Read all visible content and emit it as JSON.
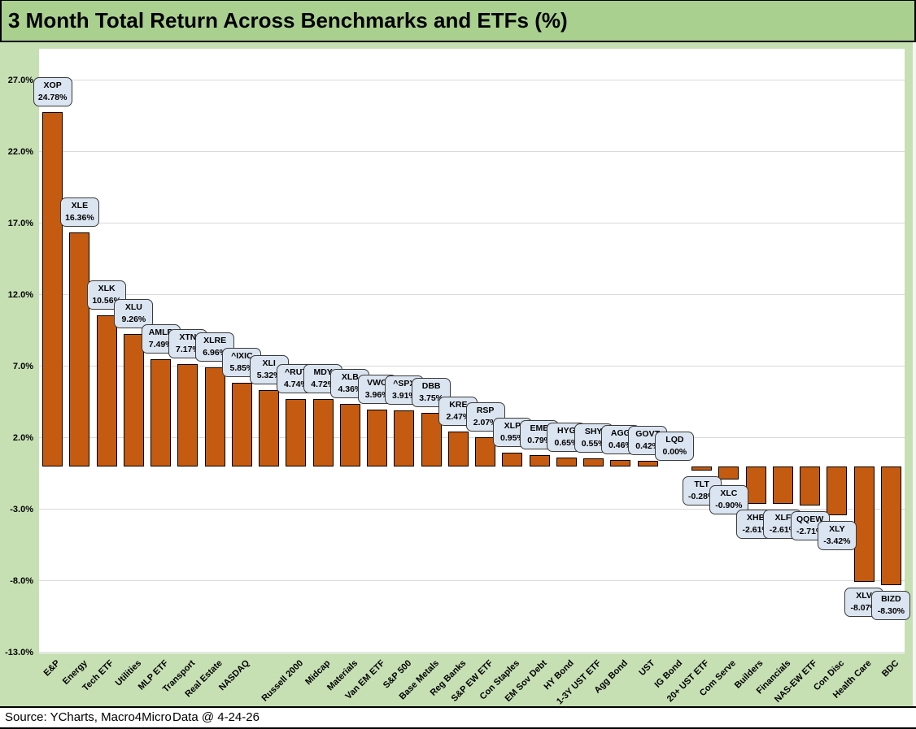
{
  "title": "3 Month Total Return Across Benchmarks and ETFs (%)",
  "footer": {
    "source": "Source: YCharts, Macro4Micro",
    "data_date": "Data @ 4-24-26"
  },
  "chart_data": {
    "type": "bar",
    "title": "3 Month Total Return Across Benchmarks and ETFs (%)",
    "xlabel": "",
    "ylabel": "",
    "ylim": [
      -13,
      27
    ],
    "grid": true,
    "legend": "none",
    "yticks": [
      {
        "value": 27,
        "label": "27.0%"
      },
      {
        "value": 22,
        "label": "22.0%"
      },
      {
        "value": 17,
        "label": "17.0%"
      },
      {
        "value": 12,
        "label": "12.0%"
      },
      {
        "value": 7,
        "label": "7.0%"
      },
      {
        "value": 2,
        "label": "2.0%"
      },
      {
        "value": -3,
        "label": "-3.0%"
      },
      {
        "value": -8,
        "label": "-8.0%"
      },
      {
        "value": -13,
        "label": "-13.0%"
      }
    ],
    "points": [
      {
        "ticker": "XOP",
        "category": "E&P",
        "value": 24.78,
        "label": "24.78%"
      },
      {
        "ticker": "XLE",
        "category": "Energy",
        "value": 16.36,
        "label": "16.36%"
      },
      {
        "ticker": "XLK",
        "category": "Tech ETF",
        "value": 10.56,
        "label": "10.56%"
      },
      {
        "ticker": "XLU",
        "category": "Utilities",
        "value": 9.26,
        "label": "9.26%"
      },
      {
        "ticker": "AMLP",
        "category": "MLP ETF",
        "value": 7.49,
        "label": "7.49%"
      },
      {
        "ticker": "XTN",
        "category": "Transport",
        "value": 7.17,
        "label": "7.17%"
      },
      {
        "ticker": "XLRE",
        "category": "Real Estate",
        "value": 6.96,
        "label": "6.96%"
      },
      {
        "ticker": "^IXIC",
        "category": "NASDAQ",
        "value": 5.85,
        "label": "5.85%"
      },
      {
        "ticker": "XLI",
        "category": "",
        "value": 5.32,
        "label": "5.32%"
      },
      {
        "ticker": "^RUT",
        "category": "Russell 2000",
        "value": 4.74,
        "label": "4.74%"
      },
      {
        "ticker": "MDY",
        "category": "Midcap",
        "value": 4.72,
        "label": "4.72%"
      },
      {
        "ticker": "XLB",
        "category": "Materials",
        "value": 4.36,
        "label": "4.36%"
      },
      {
        "ticker": "VWO",
        "category": "Van EM ETF",
        "value": 3.96,
        "label": "3.96%"
      },
      {
        "ticker": "^SPX",
        "category": "S&P 500",
        "value": 3.91,
        "label": "3.91%"
      },
      {
        "ticker": "DBB",
        "category": "Base Metals",
        "value": 3.75,
        "label": "3.75%"
      },
      {
        "ticker": "KRE",
        "category": "Reg Banks",
        "value": 2.47,
        "label": "2.47%"
      },
      {
        "ticker": "RSP",
        "category": "S&P EW ETF",
        "value": 2.07,
        "label": "2.07%"
      },
      {
        "ticker": "XLP",
        "category": "Con Staples",
        "value": 0.95,
        "label": "0.95%"
      },
      {
        "ticker": "EMB",
        "category": "EM Sov Debt",
        "value": 0.79,
        "label": "0.79%"
      },
      {
        "ticker": "HYG",
        "category": "HY Bond",
        "value": 0.65,
        "label": "0.65%"
      },
      {
        "ticker": "SHY",
        "category": "1-3Y UST ETF",
        "value": 0.55,
        "label": "0.55%"
      },
      {
        "ticker": "AGG",
        "category": "Agg Bond",
        "value": 0.46,
        "label": "0.46%"
      },
      {
        "ticker": "GOVT",
        "category": "UST",
        "value": 0.42,
        "label": "0.42%"
      },
      {
        "ticker": "LQD",
        "category": "IG Bond",
        "value": 0.0,
        "label": "0.00%"
      },
      {
        "ticker": "TLT",
        "category": "20+ UST ETF",
        "value": -0.28,
        "label": "-0.28%"
      },
      {
        "ticker": "XLC",
        "category": "Com Serve",
        "value": -0.9,
        "label": "-0.90%"
      },
      {
        "ticker": "XHB",
        "category": "Builders",
        "value": -2.61,
        "label": "-2.61%"
      },
      {
        "ticker": "XLF",
        "category": "Financials",
        "value": -2.61,
        "label": "-2.61%"
      },
      {
        "ticker": "QQEW",
        "category": "NAS-EW ETF",
        "value": -2.71,
        "label": "-2.71%"
      },
      {
        "ticker": "XLY",
        "category": "Con Disc",
        "value": -3.42,
        "label": "-3.42%"
      },
      {
        "ticker": "XLV",
        "category": "Health Care",
        "value": -8.07,
        "label": "-8.07%"
      },
      {
        "ticker": "BIZD",
        "category": "BDC",
        "value": -8.3,
        "label": "-8.30%"
      }
    ],
    "colors": {
      "bar": "#C55A11",
      "bar_border": "#000000",
      "callout_fill": "#DBE5F1",
      "callout_border": "#3A3A3A",
      "background": "#C6E0B4",
      "title_bg": "#A9D08E",
      "gridline": "#D9D9D9",
      "plot_bg": "#FFFFFF"
    }
  }
}
